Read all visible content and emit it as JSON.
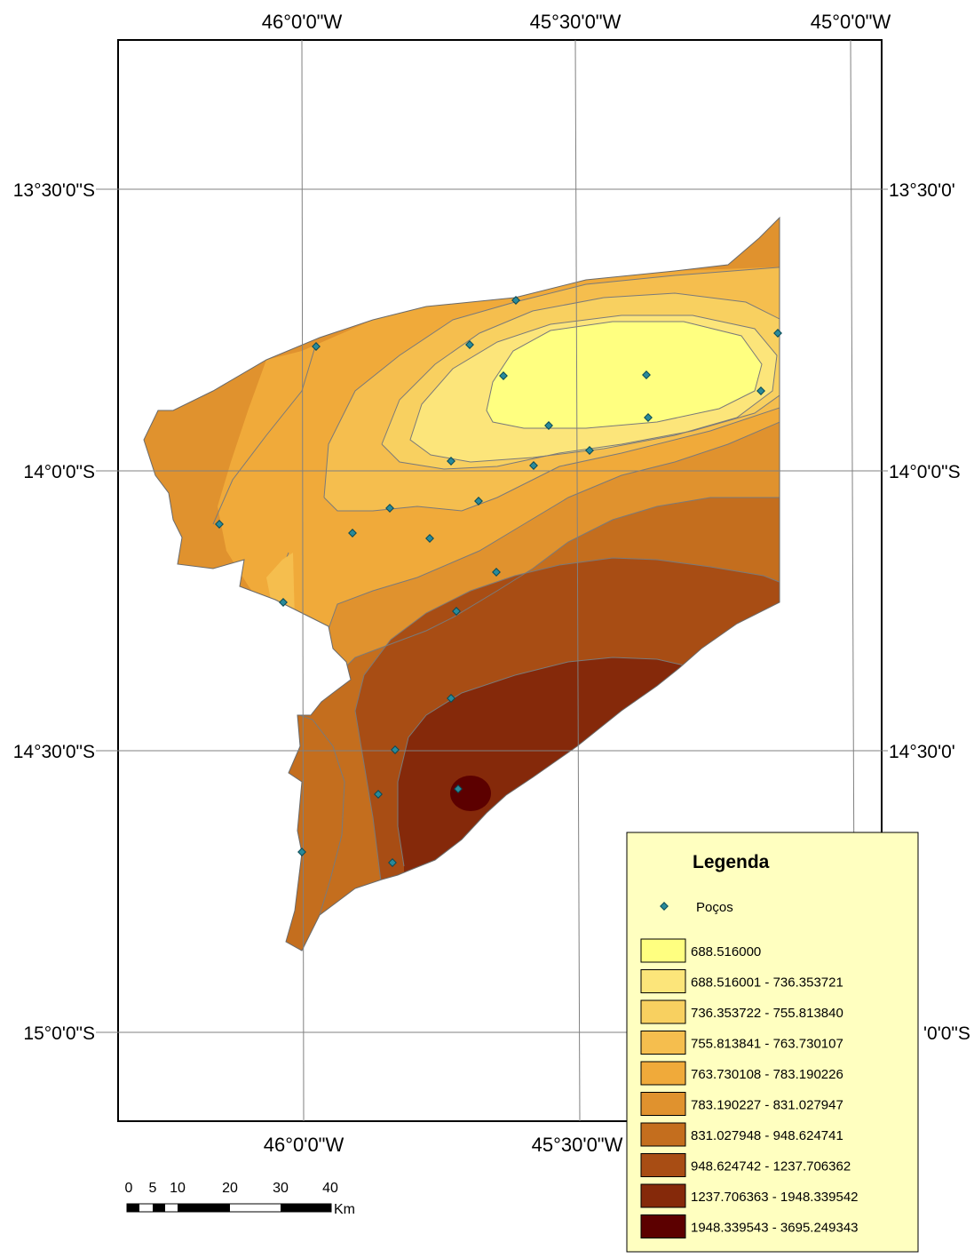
{
  "coords": {
    "top": [
      "46°0'0\"W",
      "45°30'0\"W",
      "45°0'0\"W"
    ],
    "bottom": [
      "46°0'0\"W",
      "45°30'0\"W"
    ],
    "left": [
      "13°30'0\"S",
      "14°0'0\"S",
      "14°30'0\"S",
      "15°0'0\"S"
    ],
    "right": [
      "13°30'0'",
      "14°0'0\"S",
      "14°30'0'",
      "'0'0\"S"
    ]
  },
  "legend": {
    "title": "Legenda",
    "points_label": "Poços",
    "classes": [
      {
        "label": "688.516000",
        "color": "#ffff80"
      },
      {
        "label": "688.516001 - 736.353721",
        "color": "#fce57a"
      },
      {
        "label": "736.353722 - 755.813840",
        "color": "#f8d060"
      },
      {
        "label": "755.813841 - 763.730107",
        "color": "#f5be4e"
      },
      {
        "label": "763.730108 - 783.190226",
        "color": "#f0aa3a"
      },
      {
        "label": "783.190227 - 831.027947",
        "color": "#e0922e"
      },
      {
        "label": "831.027948 - 948.624741",
        "color": "#c46e1e"
      },
      {
        "label": "948.624742 - 1237.706362",
        "color": "#a84d14"
      },
      {
        "label": "1237.706363 - 1948.339542",
        "color": "#85290a"
      },
      {
        "label": "1948.339543 - 3695.249343",
        "color": "#5c0000"
      }
    ]
  },
  "scale_bar": {
    "ticks": [
      "0",
      "5",
      "10",
      "20",
      "30",
      "40"
    ],
    "unit": "Km"
  },
  "colors": {
    "well_marker": "#2a8a9a",
    "grid": "#808080",
    "legend_bg": "#ffffc0"
  }
}
